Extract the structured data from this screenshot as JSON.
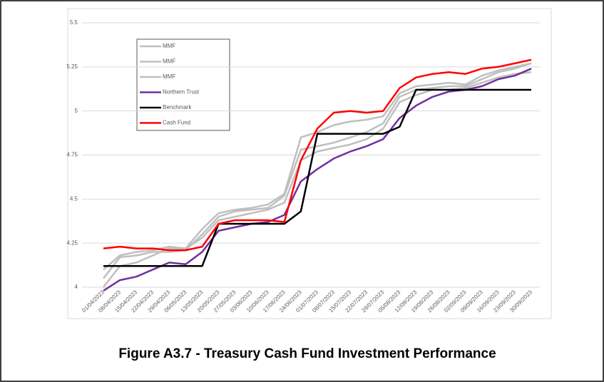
{
  "chart_data": {
    "type": "line",
    "title": "Figure A3.7 - Treasury Cash Fund Investment Performance",
    "categories": [
      "01/04/2023",
      "08/04/2023",
      "15/04/2023",
      "22/04/2023",
      "29/04/2023",
      "06/05/2023",
      "13/05/2023",
      "20/05/2023",
      "27/05/2023",
      "03/06/2023",
      "10/06/2023",
      "17/06/2023",
      "24/06/2023",
      "01/07/2023",
      "08/07/2023",
      "15/07/2023",
      "22/07/2023",
      "29/07/2023",
      "05/08/2023",
      "12/08/2023",
      "19/08/2023",
      "26/08/2023",
      "02/09/2023",
      "09/09/2023",
      "16/09/2023",
      "23/09/2023",
      "30/09/2023"
    ],
    "series": [
      {
        "name": "MMF",
        "color": "#bfbfbf",
        "values": [
          4.05,
          4.17,
          4.18,
          4.2,
          4.2,
          4.21,
          4.3,
          4.4,
          4.43,
          4.44,
          4.45,
          4.52,
          4.78,
          4.8,
          4.82,
          4.85,
          4.88,
          4.93,
          5.08,
          5.12,
          5.13,
          5.14,
          5.14,
          5.18,
          5.22,
          5.24,
          5.27
        ]
      },
      {
        "name": "MMF",
        "color": "#bfbfbf",
        "values": [
          4.0,
          4.12,
          4.14,
          4.18,
          4.22,
          4.22,
          4.28,
          4.38,
          4.4,
          4.42,
          4.44,
          4.48,
          4.72,
          4.77,
          4.79,
          4.81,
          4.84,
          4.9,
          5.05,
          5.09,
          5.12,
          5.12,
          5.13,
          5.16,
          5.19,
          5.21,
          5.22
        ]
      },
      {
        "name": "MMF",
        "color": "#bfbfbf",
        "values": [
          4.1,
          4.18,
          4.2,
          4.21,
          4.23,
          4.22,
          4.33,
          4.42,
          4.44,
          4.45,
          4.47,
          4.53,
          4.85,
          4.88,
          4.92,
          4.94,
          4.95,
          4.97,
          5.1,
          5.14,
          5.15,
          5.16,
          5.15,
          5.2,
          5.23,
          5.25,
          5.27
        ]
      },
      {
        "name": "Northern Trust",
        "color": "#7030a0",
        "values": [
          3.98,
          4.04,
          4.06,
          4.1,
          4.14,
          4.13,
          4.2,
          4.32,
          4.34,
          4.36,
          4.37,
          4.41,
          4.6,
          4.67,
          4.73,
          4.77,
          4.8,
          4.84,
          4.96,
          5.03,
          5.08,
          5.11,
          5.12,
          5.14,
          5.18,
          5.2,
          5.24
        ]
      },
      {
        "name": "Benchmark",
        "color": "#000000",
        "values": [
          4.12,
          4.12,
          4.12,
          4.12,
          4.12,
          4.12,
          4.12,
          4.36,
          4.36,
          4.36,
          4.36,
          4.36,
          4.43,
          4.87,
          4.87,
          4.87,
          4.87,
          4.87,
          4.91,
          5.12,
          5.12,
          5.12,
          5.12,
          5.12,
          5.12,
          5.12,
          5.12
        ]
      },
      {
        "name": "Cash Fund",
        "color": "#ff0000",
        "values": [
          4.22,
          4.23,
          4.22,
          4.22,
          4.21,
          4.21,
          4.23,
          4.36,
          4.38,
          4.38,
          4.38,
          4.37,
          4.72,
          4.9,
          4.99,
          5.0,
          4.99,
          5.0,
          5.13,
          5.19,
          5.21,
          5.22,
          5.21,
          5.24,
          5.25,
          5.27,
          5.29
        ]
      }
    ],
    "ylim": [
      4,
      5.5
    ],
    "yticks": [
      4,
      4.25,
      4.5,
      4.75,
      5,
      5.25,
      5.5
    ],
    "grid": true
  }
}
